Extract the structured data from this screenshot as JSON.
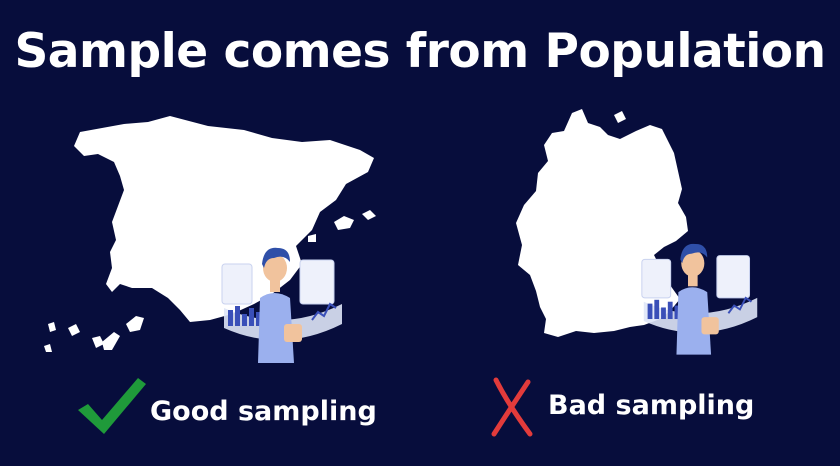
{
  "title": "Sample comes from Population",
  "panels": [
    {
      "caption": "Good sampling",
      "mark": "check-icon",
      "mark_color": "#1f9a3a"
    },
    {
      "caption": "Bad sampling",
      "mark": "cross-icon",
      "mark_color": "#e23b3b"
    }
  ],
  "colors": {
    "background": "#070d3c",
    "map": "#ffffff",
    "person_hair": "#2f4fa8",
    "person_shirt": "#9bb0ee",
    "person_skin": "#f1c39d",
    "chart_bars": "#3a4fb8"
  },
  "illustrations": [
    "map-spain",
    "map-germany",
    "analyst-person-with-charts"
  ]
}
